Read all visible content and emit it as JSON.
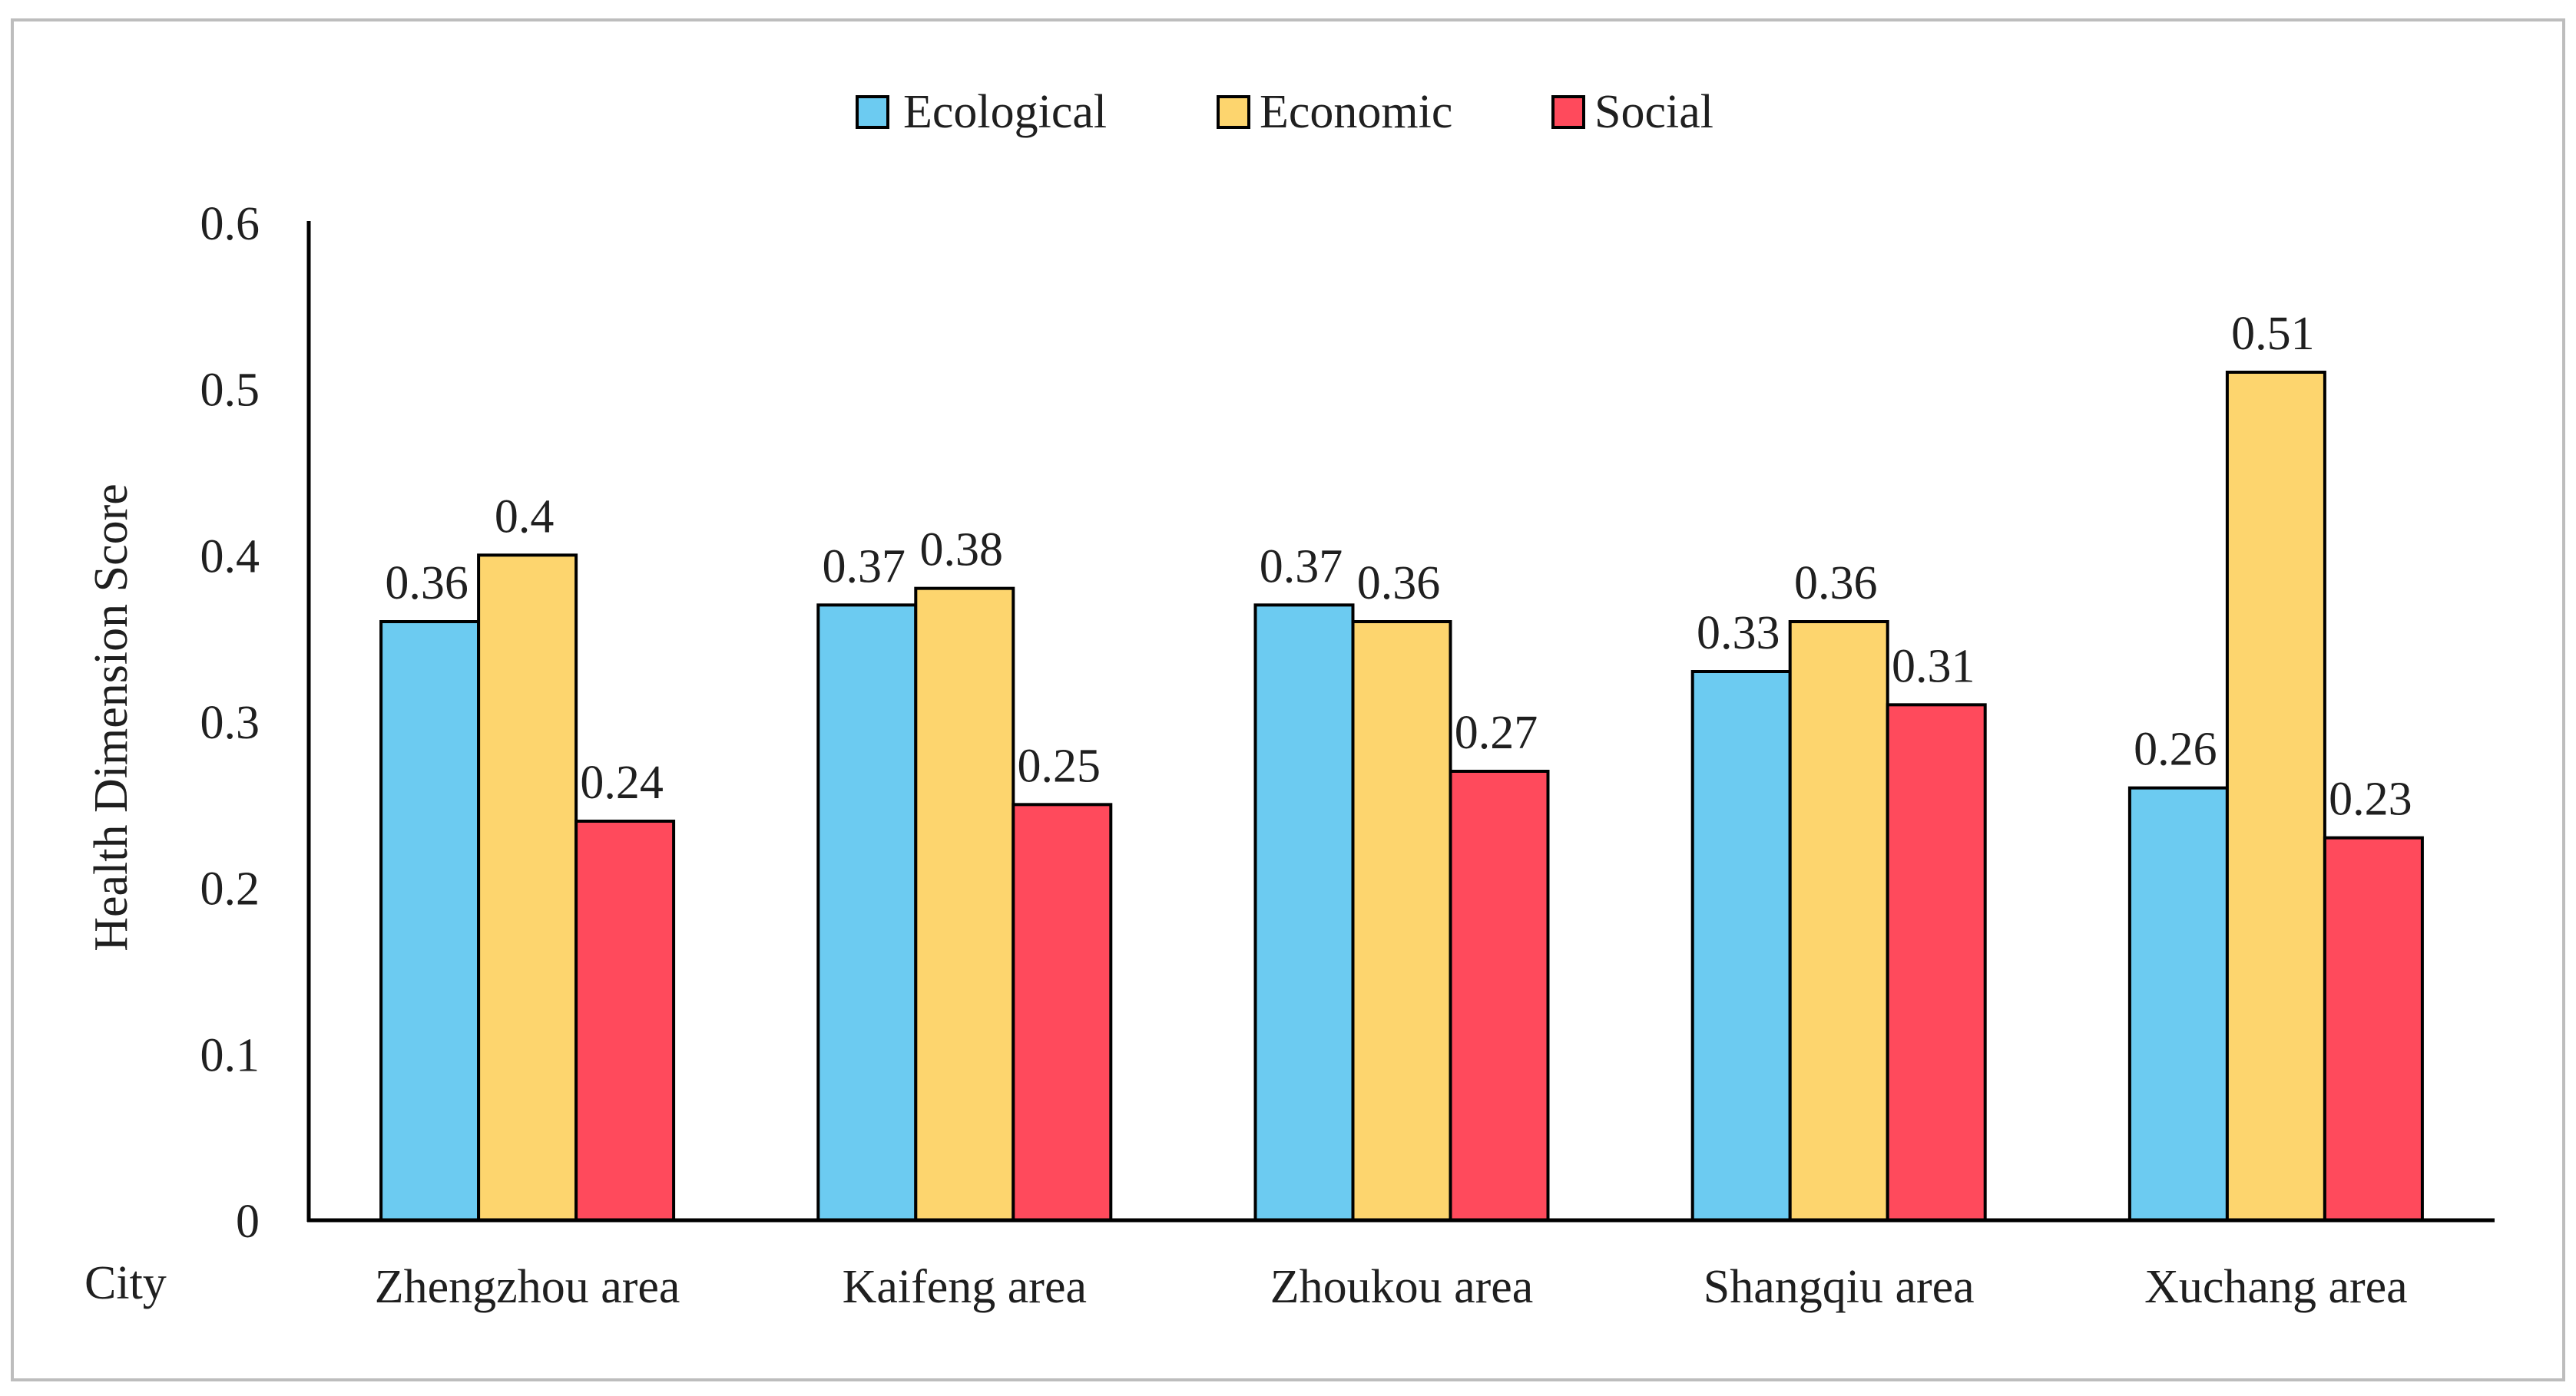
{
  "chart_data": {
    "type": "bar",
    "title": "",
    "xlabel": "City",
    "ylabel": "Health Dimension Score",
    "ylim": [
      0,
      0.6
    ],
    "yticks": [
      0,
      0.1,
      0.2,
      0.3,
      0.4,
      0.5,
      0.6
    ],
    "ytick_labels": [
      "0",
      "0.1",
      "0.2",
      "0.3",
      "0.4",
      "0.5",
      "0.6"
    ],
    "grid": false,
    "legend_position": "top-center",
    "categories": [
      "Zhengzhou area",
      "Kaifeng area",
      "Zhoukou area",
      "Shangqiu area",
      "Xuchang area"
    ],
    "series": [
      {
        "name": "Ecological",
        "color": "#6ccbf1",
        "values": [
          0.36,
          0.37,
          0.37,
          0.33,
          0.26
        ],
        "labels": [
          "0.36",
          "0.37",
          "0.37",
          "0.33",
          "0.26"
        ]
      },
      {
        "name": "Economic",
        "color": "#fdd56e",
        "values": [
          0.4,
          0.38,
          0.36,
          0.36,
          0.51
        ],
        "labels": [
          "0.4",
          "0.38",
          "0.36",
          "0.36",
          "0.51"
        ]
      },
      {
        "name": "Social",
        "color": "#ff4a5c",
        "values": [
          0.24,
          0.25,
          0.27,
          0.31,
          0.23
        ],
        "labels": [
          "0.24",
          "0.25",
          "0.27",
          "0.31",
          "0.23"
        ]
      }
    ]
  }
}
